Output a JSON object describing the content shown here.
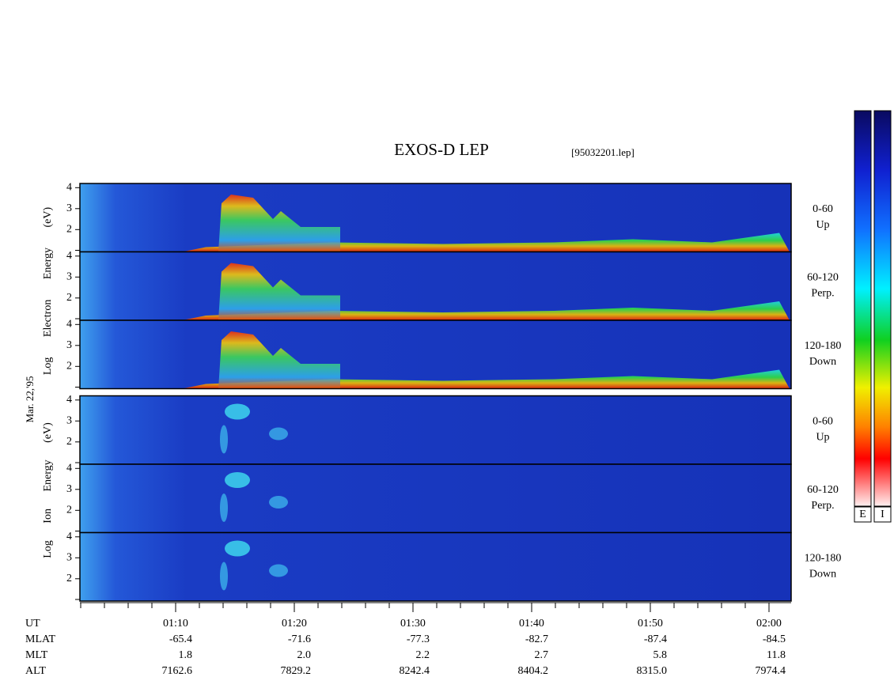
{
  "header": {
    "title": "EXOS-D LEP",
    "file": "[95032201.lep]"
  },
  "date": "Mar. 22,'95",
  "electron": {
    "label": "Log Electron Energy (eV)",
    "panels": [
      {
        "range": "0-60",
        "dir": "Up"
      },
      {
        "range": "60-120",
        "dir": "Perp."
      },
      {
        "range": "120-180",
        "dir": "Down"
      }
    ]
  },
  "ion": {
    "label": "Log Ion Energy (eV)",
    "panels": [
      {
        "range": "0-60",
        "dir": "Up"
      },
      {
        "range": "60-120",
        "dir": "Perp."
      },
      {
        "range": "120-180",
        "dir": "Down"
      }
    ]
  },
  "energy_ticks": [
    2,
    3,
    4
  ],
  "ephemeris": {
    "labels": [
      "UT",
      "MLAT",
      "MLT",
      "ALT"
    ],
    "UT": [
      "01:10",
      "01:20",
      "01:30",
      "01:40",
      "01:50",
      "02:00"
    ],
    "MLAT": [
      "-65.4",
      "-71.6",
      "-77.3",
      "-82.7",
      "-87.4",
      "-84.5"
    ],
    "MLT": [
      "1.8",
      "2.0",
      "2.2",
      "2.7",
      "5.8",
      "11.8"
    ],
    "ALT": [
      "7162.6",
      "7829.2",
      "8242.4",
      "8404.2",
      "8315.0",
      "7974.4"
    ]
  },
  "colorbar": {
    "labels": [
      "E",
      "I"
    ]
  }
}
